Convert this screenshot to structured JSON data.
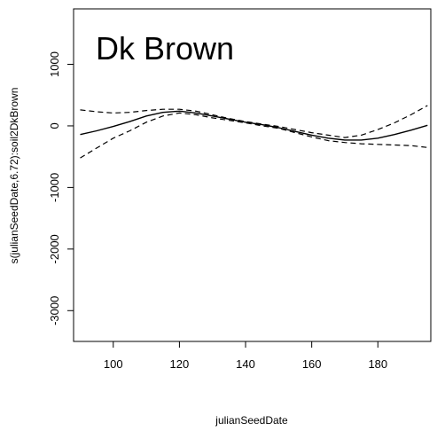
{
  "chart_data": {
    "type": "line",
    "title": "",
    "panel_label": "Dk Brown",
    "xlabel": "julianSeedDate",
    "ylabel": "s(julianSeedDate,6.72):soil2DkBrown",
    "xlim": [
      88,
      196
    ],
    "ylim": [
      -3500,
      1900
    ],
    "x_ticks": [
      100,
      120,
      140,
      160,
      180
    ],
    "y_ticks": [
      1000,
      0,
      -1000,
      -2000,
      -3000
    ],
    "grid": false,
    "legend": "none",
    "x": [
      90,
      95,
      100,
      105,
      110,
      115,
      120,
      125,
      130,
      135,
      140,
      145,
      150,
      155,
      160,
      165,
      170,
      175,
      180,
      185,
      190,
      195
    ],
    "series": [
      {
        "role": "estimate",
        "style": "solid",
        "values": [
          -140,
          -80,
          -10,
          70,
          160,
          220,
          240,
          210,
          160,
          110,
          60,
          20,
          -30,
          -90,
          -150,
          -200,
          -230,
          -230,
          -200,
          -140,
          -70,
          10
        ]
      },
      {
        "role": "upper",
        "style": "dashed",
        "values": [
          260,
          230,
          210,
          220,
          250,
          270,
          270,
          240,
          180,
          120,
          70,
          30,
          -10,
          -60,
          -110,
          -150,
          -190,
          -150,
          -60,
          50,
          180,
          330
        ]
      },
      {
        "role": "lower",
        "style": "dashed",
        "values": [
          -520,
          -360,
          -200,
          -80,
          60,
          160,
          210,
          180,
          130,
          90,
          50,
          0,
          -40,
          -110,
          -180,
          -240,
          -270,
          -290,
          -300,
          -310,
          -320,
          -350
        ]
      }
    ]
  }
}
